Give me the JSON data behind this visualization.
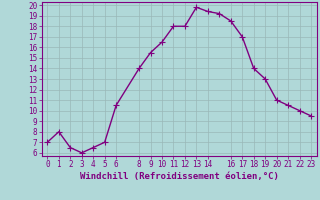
{
  "x": [
    0,
    1,
    2,
    3,
    4,
    5,
    6,
    8,
    9,
    10,
    11,
    12,
    13,
    14,
    15,
    16,
    17,
    18,
    19,
    20,
    21,
    22,
    23
  ],
  "y": [
    7,
    8,
    6.5,
    6,
    6.5,
    7,
    10.5,
    14,
    15.5,
    16.5,
    18,
    18,
    19.8,
    19.4,
    19.2,
    18.5,
    17,
    14,
    13,
    11,
    10.5,
    10,
    9.5
  ],
  "line_color": "#800080",
  "marker": "+",
  "marker_size": 4,
  "marker_linewidth": 0.8,
  "bg_color": "#b0d8d8",
  "grid_color": "#9fc8c8",
  "title": "",
  "xlabel": "Windchill (Refroidissement éolien,°C)",
  "ylabel": "",
  "xlim": [
    -0.5,
    23.5
  ],
  "ylim": [
    6,
    20
  ],
  "yticks": [
    6,
    7,
    8,
    9,
    10,
    11,
    12,
    13,
    14,
    15,
    16,
    17,
    18,
    19,
    20
  ],
  "xticks": [
    0,
    1,
    2,
    3,
    4,
    5,
    6,
    8,
    9,
    10,
    11,
    12,
    13,
    14,
    16,
    17,
    18,
    19,
    20,
    21,
    22,
    23
  ],
  "tick_color": "#800080",
  "axis_color": "#800080",
  "label_color": "#800080",
  "tick_fontsize": 5.5,
  "xlabel_fontsize": 6.5,
  "line_width": 1.0
}
